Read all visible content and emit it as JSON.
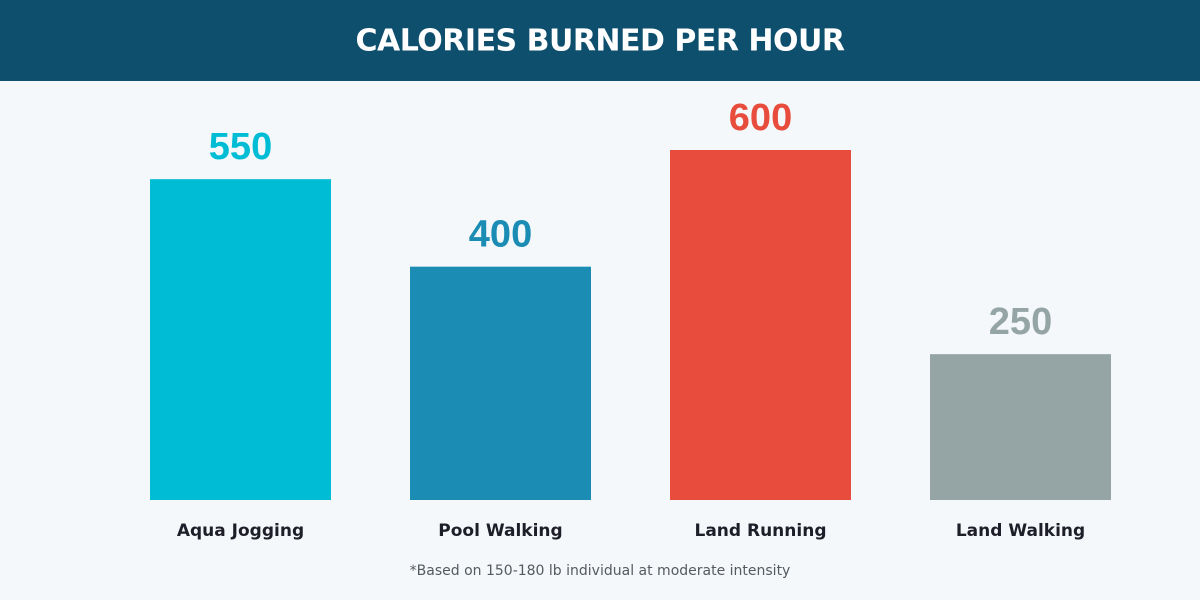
{
  "chart_data": {
    "type": "bar",
    "title": "CALORIES BURNED PER HOUR",
    "categories": [
      "Aqua Jogging",
      "Pool Walking",
      "Land Running",
      "Land Walking"
    ],
    "values": [
      550,
      400,
      600,
      250
    ],
    "colors": [
      "#00bcd4",
      "#1b8cb3",
      "#e74c3c",
      "#95a5a6"
    ],
    "footnote": "*Based on 150-180 lb individual at moderate intensity"
  }
}
